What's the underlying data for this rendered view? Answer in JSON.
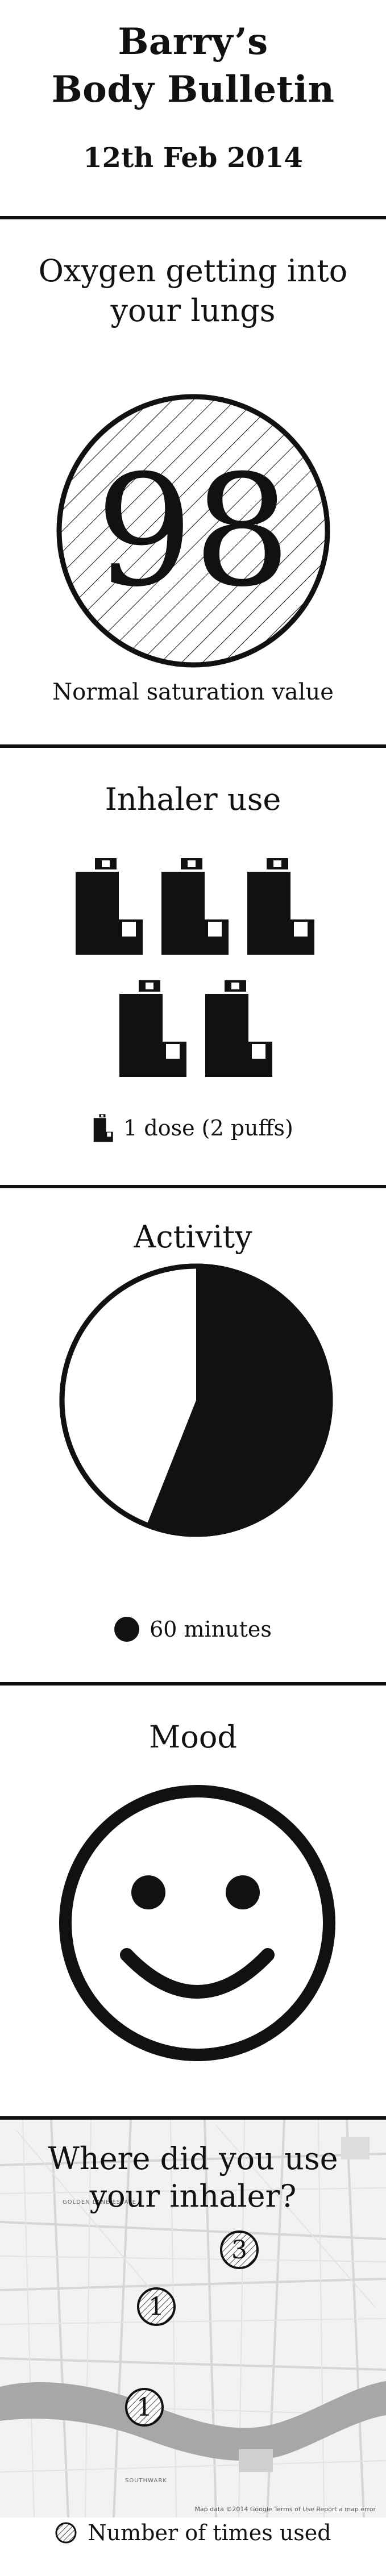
{
  "header": {
    "title_line1": "Barry’s",
    "title_line2": "Body Bulletin",
    "date": "12th Feb 2014"
  },
  "oxygen": {
    "heading_line1": "Oxygen getting into",
    "heading_line2": "your lungs",
    "value": "98",
    "caption": "Normal saturation value"
  },
  "inhaler": {
    "heading": "Inhaler use",
    "count": 5,
    "legend": "1 dose (2 puffs)"
  },
  "activity": {
    "heading": "Activity",
    "filled_fraction": 0.56,
    "legend": "60 minutes"
  },
  "mood": {
    "heading": "Mood",
    "icon": "smiley-face-icon"
  },
  "map": {
    "heading_line1": "Where did you use",
    "heading_line2": "your inhaler?",
    "markers": [
      {
        "label": "3"
      },
      {
        "label": "1"
      },
      {
        "label": "1"
      }
    ],
    "attribution": "Map data ©2014 Google   Terms of Use   Report a map error",
    "labels": [
      "GOLDEN LANE ESTATE",
      "SOUTHWARK"
    ],
    "legend": "Number of times used"
  },
  "colors": {
    "ink": "#111111",
    "background": "#ffffff",
    "river": "#a7a7a7",
    "map_bg": "#f2f2f2"
  }
}
